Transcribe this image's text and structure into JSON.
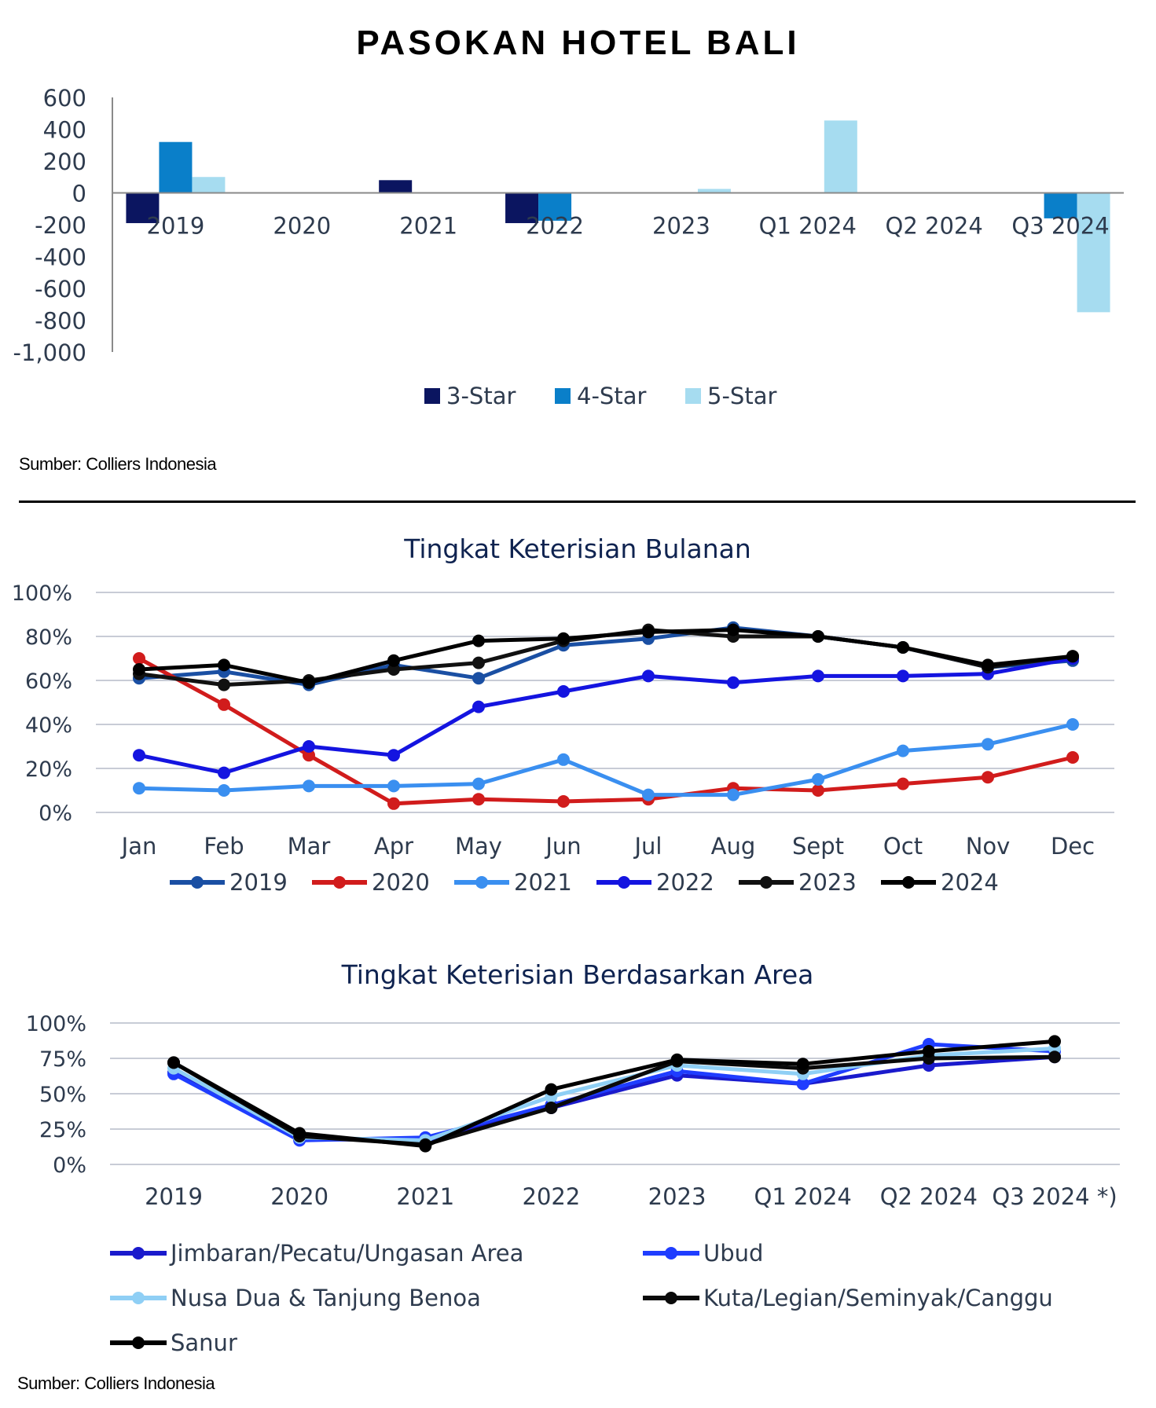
{
  "title": "PASOKAN HOTEL BALI",
  "source_top": "Sumber: Colliers Indonesia",
  "source_bottom": "Sumber: Colliers Indonesia",
  "chart_data": [
    {
      "type": "bar",
      "title": "PASOKAN HOTEL BALI",
      "categories": [
        "2019",
        "2020",
        "2021",
        "2022",
        "2023",
        "Q1 2024",
        "Q2 2024",
        "Q3 2024"
      ],
      "ylim": [
        -1000,
        600
      ],
      "yticks": [
        "600",
        "400",
        "200",
        "0",
        "-200",
        "-400",
        "-600",
        "-800",
        "-1,000"
      ],
      "legend_position": "bottom-center",
      "series": [
        {
          "name": "3-Star",
          "color": "#0b1560",
          "values": [
            -190,
            0,
            80,
            -190,
            0,
            0,
            0,
            0
          ]
        },
        {
          "name": "4-Star",
          "color": "#0a7fc9",
          "values": [
            320,
            0,
            0,
            -175,
            0,
            0,
            0,
            -160
          ]
        },
        {
          "name": "5-Star",
          "color": "#a6dcf0",
          "values": [
            100,
            0,
            0,
            0,
            25,
            455,
            0,
            -750
          ]
        }
      ]
    },
    {
      "type": "line",
      "title": "Tingkat Keterisian Bulanan",
      "categories": [
        "Jan",
        "Feb",
        "Mar",
        "Apr",
        "May",
        "Jun",
        "Jul",
        "Aug",
        "Sept",
        "Oct",
        "Nov",
        "Dec"
      ],
      "ylim": [
        0,
        100
      ],
      "yticks": [
        "100%",
        "80%",
        "60%",
        "40%",
        "20%",
        "0%"
      ],
      "grid": true,
      "legend_position": "bottom",
      "series": [
        {
          "name": "2019",
          "color": "#1a4fa3",
          "values": [
            61,
            64,
            58,
            67,
            61,
            76,
            79,
            84,
            80,
            75,
            66,
            69
          ]
        },
        {
          "name": "2020",
          "color": "#d11c1c",
          "values": [
            70,
            49,
            26,
            4,
            6,
            5,
            6,
            11,
            10,
            13,
            16,
            25
          ]
        },
        {
          "name": "2021",
          "color": "#3a8ff0",
          "values": [
            11,
            10,
            12,
            12,
            13,
            24,
            8,
            8,
            15,
            28,
            31,
            40
          ]
        },
        {
          "name": "2022",
          "color": "#1414e0",
          "values": [
            26,
            18,
            30,
            26,
            48,
            55,
            62,
            59,
            62,
            62,
            63,
            70
          ]
        },
        {
          "name": "2023",
          "color": "#111111",
          "values": [
            63,
            58,
            60,
            65,
            68,
            78,
            83,
            80,
            80,
            75,
            66,
            71
          ]
        },
        {
          "name": "2024",
          "color": "#000000",
          "values": [
            65,
            67,
            59,
            69,
            78,
            79,
            82,
            83,
            80,
            75,
            67,
            71
          ]
        }
      ]
    },
    {
      "type": "line",
      "title": "Tingkat Keterisian Berdasarkan Area",
      "categories": [
        "2019",
        "2020",
        "2021",
        "2022",
        "2023",
        "Q1 2024",
        "Q2 2024",
        "Q3 2024 *)"
      ],
      "ylim": [
        0,
        100
      ],
      "yticks": [
        "100%",
        "75%",
        "50%",
        "25%",
        "0%"
      ],
      "grid": true,
      "legend_position": "bottom",
      "series": [
        {
          "name": "Jimbaran/Pecatu/Ungasan Area",
          "color": "#1a1acc",
          "values": [
            65,
            18,
            17,
            40,
            63,
            57,
            70,
            76
          ]
        },
        {
          "name": "Ubud",
          "color": "#1f3dff",
          "values": [
            64,
            17,
            19,
            42,
            66,
            57,
            85,
            80
          ]
        },
        {
          "name": "Nusa Dua & Tanjung Benoa",
          "color": "#8fcff5",
          "values": [
            68,
            19,
            17,
            48,
            70,
            64,
            77,
            82
          ]
        },
        {
          "name": "Kuta/Legian/Seminyak/Canggu",
          "color": "#0a0a0a",
          "values": [
            72,
            20,
            14,
            40,
            73,
            68,
            75,
            76
          ]
        },
        {
          "name": "Sanur",
          "color": "#000000",
          "values": [
            72,
            22,
            13,
            53,
            74,
            71,
            80,
            87
          ]
        }
      ]
    }
  ]
}
